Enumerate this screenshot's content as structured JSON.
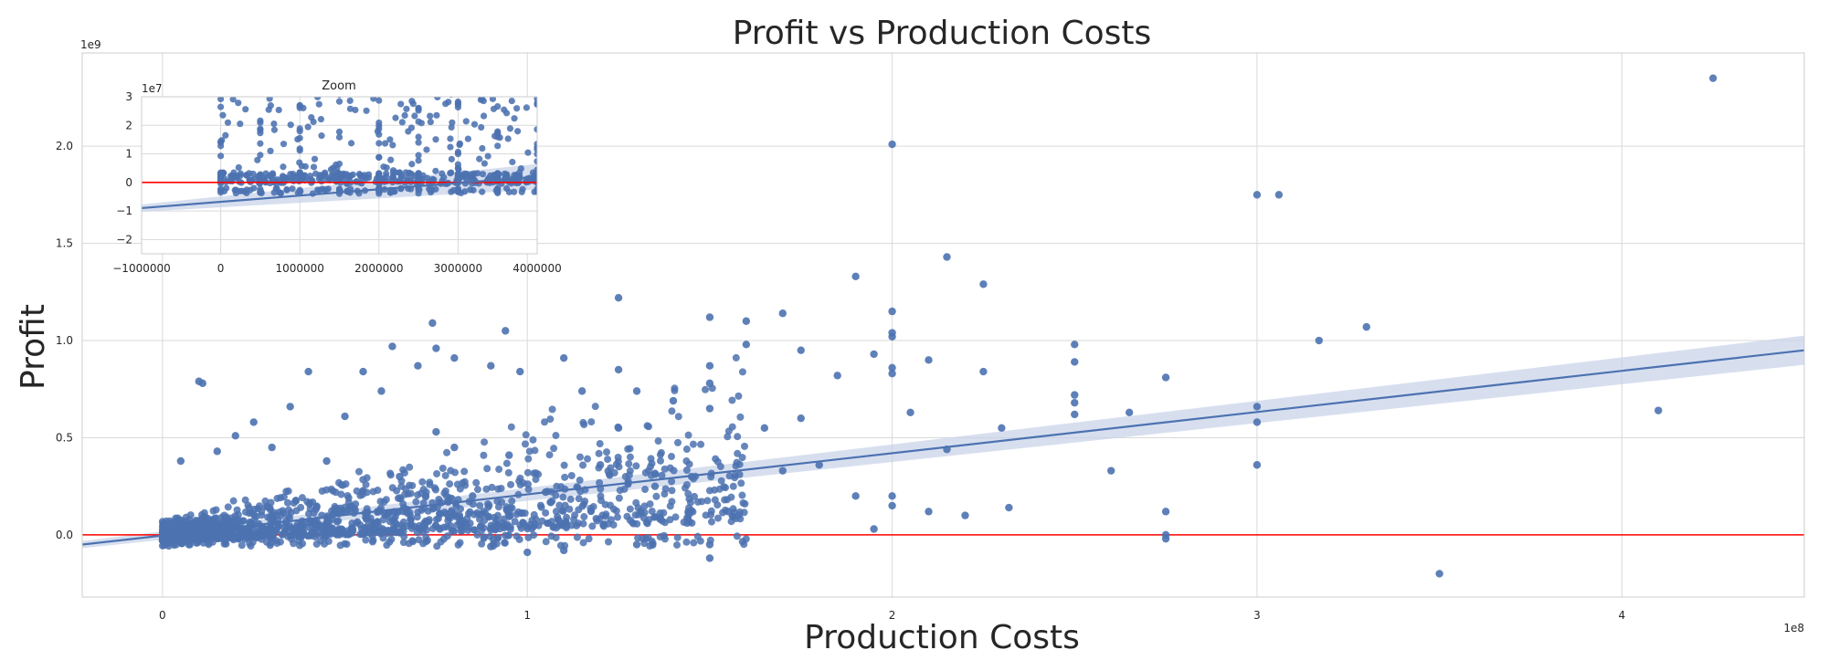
{
  "chart_data": [
    {
      "type": "scatter",
      "title": "Profit vs Production Costs",
      "xlabel": "Production Costs",
      "ylabel": "Profit",
      "x_offset_label": "1e8",
      "y_offset_label": "1e9",
      "xlim": [
        -0.22,
        4.5
      ],
      "ylim": [
        -0.32,
        2.48
      ],
      "x_ticks": [
        0,
        1,
        2,
        3,
        4
      ],
      "x_tick_labels": [
        "0",
        "1",
        "2",
        "3",
        "4"
      ],
      "y_ticks": [
        0.0,
        0.5,
        1.0,
        1.5,
        2.0
      ],
      "y_tick_labels": [
        "0.0",
        "0.5",
        "1.0",
        "1.5",
        "2.0"
      ],
      "grid": true,
      "zero_line": {
        "y": 0,
        "color": "#ff0000"
      },
      "point_color": "#4c72b0",
      "regression": {
        "x0": -0.22,
        "y0": -0.05,
        "x1": 4.5,
        "y1": 0.95,
        "band_color": "#c6d2e8"
      },
      "points": [
        [
          4.25,
          2.35
        ],
        [
          2.0,
          2.01
        ],
        [
          3.0,
          1.75
        ],
        [
          3.06,
          1.75
        ],
        [
          2.15,
          1.43
        ],
        [
          1.9,
          1.33
        ],
        [
          2.25,
          1.29
        ],
        [
          1.25,
          1.22
        ],
        [
          3.3,
          1.07
        ],
        [
          3.17,
          1.0
        ],
        [
          0.74,
          1.09
        ],
        [
          0.94,
          1.05
        ],
        [
          2.0,
          1.15
        ],
        [
          2.0,
          1.04
        ],
        [
          2.0,
          1.02
        ],
        [
          1.5,
          1.12
        ],
        [
          1.6,
          1.1
        ],
        [
          1.7,
          1.14
        ],
        [
          1.6,
          0.98
        ],
        [
          1.75,
          0.95
        ],
        [
          2.5,
          0.98
        ],
        [
          2.5,
          0.89
        ],
        [
          1.95,
          0.93
        ],
        [
          2.1,
          0.9
        ],
        [
          2.25,
          0.84
        ],
        [
          2.75,
          0.81
        ],
        [
          2.0,
          0.86
        ],
        [
          2.0,
          0.83
        ],
        [
          1.85,
          0.82
        ],
        [
          1.5,
          0.87
        ],
        [
          1.5,
          0.78
        ],
        [
          1.25,
          0.85
        ],
        [
          1.1,
          0.91
        ],
        [
          0.98,
          0.84
        ],
        [
          0.9,
          0.87
        ],
        [
          0.8,
          0.91
        ],
        [
          0.75,
          0.96
        ],
        [
          0.7,
          0.87
        ],
        [
          0.63,
          0.97
        ],
        [
          0.55,
          0.84
        ],
        [
          0.4,
          0.84
        ],
        [
          0.11,
          0.78
        ],
        [
          0.1,
          0.79
        ],
        [
          0.35,
          0.66
        ],
        [
          0.5,
          0.61
        ],
        [
          0.6,
          0.74
        ],
        [
          1.15,
          0.74
        ],
        [
          1.3,
          0.74
        ],
        [
          1.4,
          0.69
        ],
        [
          2.5,
          0.72
        ],
        [
          2.5,
          0.68
        ],
        [
          2.5,
          0.62
        ],
        [
          2.65,
          0.63
        ],
        [
          3.0,
          0.66
        ],
        [
          3.0,
          0.58
        ],
        [
          4.1,
          0.64
        ],
        [
          2.3,
          0.55
        ],
        [
          2.15,
          0.44
        ],
        [
          2.05,
          0.63
        ],
        [
          2.6,
          0.33
        ],
        [
          3.0,
          0.36
        ],
        [
          2.75,
          0.12
        ],
        [
          2.75,
          0.0
        ],
        [
          2.75,
          -0.02
        ],
        [
          3.5,
          -0.2
        ],
        [
          2.32,
          0.14
        ],
        [
          2.2,
          0.1
        ],
        [
          2.1,
          0.12
        ],
        [
          1.95,
          0.03
        ],
        [
          2.0,
          0.2
        ],
        [
          2.0,
          0.15
        ],
        [
          1.8,
          0.36
        ],
        [
          1.75,
          0.6
        ],
        [
          1.65,
          0.55
        ],
        [
          1.5,
          0.65
        ],
        [
          1.5,
          -0.05
        ],
        [
          1.5,
          -0.12
        ],
        [
          1.25,
          0.55
        ],
        [
          1.2,
          0.36
        ],
        [
          1.1,
          -0.08
        ],
        [
          1.0,
          -0.09
        ],
        [
          0.95,
          0.41
        ],
        [
          0.9,
          -0.06
        ],
        [
          0.8,
          0.45
        ],
        [
          0.75,
          0.53
        ],
        [
          0.3,
          0.45
        ],
        [
          0.25,
          0.58
        ],
        [
          0.2,
          0.51
        ],
        [
          0.15,
          0.43
        ],
        [
          0.05,
          0.38
        ],
        [
          0.45,
          0.38
        ],
        [
          0.65,
          0.3
        ],
        [
          0.85,
          0.2
        ],
        [
          1.05,
          0.22
        ],
        [
          1.35,
          0.25
        ],
        [
          1.45,
          0.3
        ],
        [
          1.7,
          0.33
        ],
        [
          1.9,
          0.2
        ],
        [
          1.55,
          0.12
        ],
        [
          1.3,
          -0.05
        ]
      ]
    },
    {
      "type": "scatter",
      "title": "Zoom",
      "x_offset_label": "",
      "y_offset_label": "1e7",
      "xlim": [
        -1000000,
        4000000
      ],
      "ylim": [
        -2.5,
        3.0
      ],
      "x_ticks": [
        -1000000,
        0,
        1000000,
        2000000,
        3000000,
        4000000
      ],
      "x_tick_labels": [
        "−1000000",
        "0",
        "1000000",
        "2000000",
        "3000000",
        "4000000"
      ],
      "y_ticks": [
        -2,
        -1,
        0,
        1,
        2,
        3
      ],
      "y_tick_labels": [
        "−2",
        "−1",
        "0",
        "1",
        "2",
        "3"
      ],
      "grid": true,
      "zero_line": {
        "y": 0,
        "color": "#ff0000"
      },
      "point_color": "#4c72b0",
      "regression": {
        "x0": -1000000,
        "y0": -0.9,
        "x1": 4000000,
        "y1": 0.2,
        "band_color": "#c6d2e8"
      }
    }
  ]
}
